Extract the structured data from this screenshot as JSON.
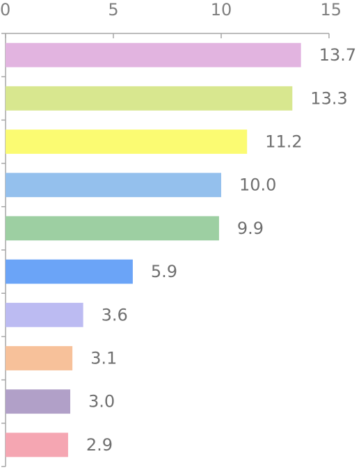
{
  "chart_data": {
    "type": "bar",
    "orientation": "horizontal",
    "xlim": [
      0,
      15
    ],
    "x_ticks": [
      0,
      5,
      10,
      15
    ],
    "x_tick_labels": [
      "0",
      "5",
      "10",
      "15"
    ],
    "x_axis_position": "top",
    "grid": false,
    "legend": "none",
    "values": [
      13.7,
      13.3,
      11.2,
      10.0,
      9.9,
      5.9,
      3.6,
      3.1,
      3.0,
      2.9
    ],
    "value_labels": [
      "13.7",
      "13.3",
      "11.2",
      "10.0",
      "9.9",
      "5.9",
      "3.6",
      "3.1",
      "3.0",
      "2.9"
    ],
    "colors": [
      "#e2b4e0",
      "#d8e78f",
      "#fbfb72",
      "#94c0ed",
      "#9dcfa2",
      "#6ba4f7",
      "#bcbbf2",
      "#f7c19a",
      "#b1a0c8",
      "#f5a6b2"
    ]
  }
}
